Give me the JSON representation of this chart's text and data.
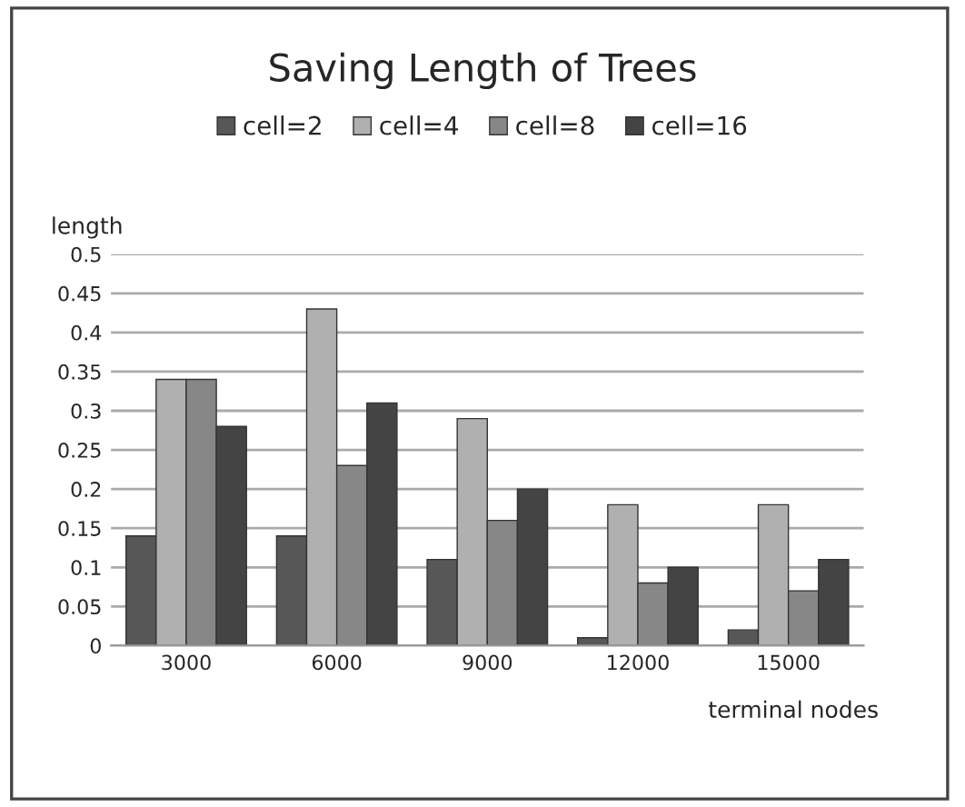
{
  "chart_data": {
    "type": "bar",
    "title": "Saving Length of Trees",
    "xlabel": "terminal nodes",
    "ylabel": "length",
    "categories": [
      "3000",
      "6000",
      "9000",
      "12000",
      "15000"
    ],
    "series": [
      {
        "name": "cell=2",
        "color": "#575757",
        "values": [
          0.14,
          0.14,
          0.11,
          0.01,
          0.02
        ]
      },
      {
        "name": "cell=4",
        "color": "#b0b0b0",
        "values": [
          0.34,
          0.43,
          0.29,
          0.18,
          0.18
        ]
      },
      {
        "name": "cell=8",
        "color": "#878787",
        "values": [
          0.34,
          0.23,
          0.16,
          0.08,
          0.07
        ]
      },
      {
        "name": "cell=16",
        "color": "#444444",
        "values": [
          0.28,
          0.31,
          0.2,
          0.1,
          0.11
        ]
      }
    ],
    "ylim": [
      0,
      0.5
    ],
    "yticks": [
      0,
      0.05,
      0.1,
      0.15,
      0.2,
      0.25,
      0.3,
      0.35,
      0.4,
      0.45,
      0.5
    ],
    "grid": "y",
    "legend": "top"
  }
}
